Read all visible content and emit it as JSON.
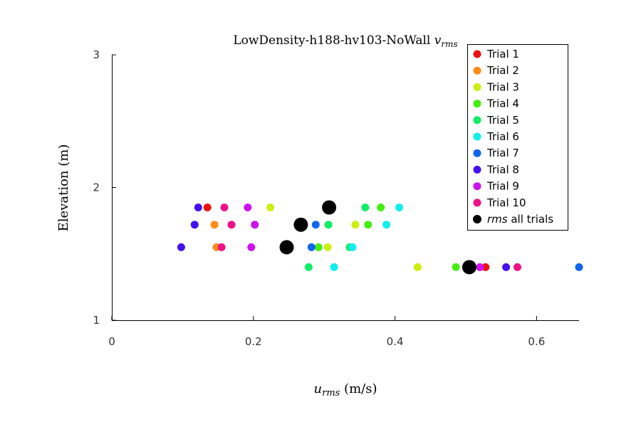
{
  "chart_data": {
    "type": "scatter",
    "title": "LowDensity-h188-hv103-NoWall v_rms",
    "title_main": "LowDensity-h188-hv103-NoWall ",
    "title_var": "v",
    "title_sub": "rms",
    "xlabel": "u_rms (m/s)",
    "xlabel_var": "u",
    "xlabel_sub": "rms",
    "xlabel_unit": " (m/s)",
    "ylabel": "Elevation (m)",
    "xlim": [
      0,
      0.66
    ],
    "ylim": [
      1,
      3
    ],
    "x_ticks": [
      "0",
      "0.2",
      "0.4",
      "0.6"
    ],
    "y_ticks": [
      "1",
      "2",
      "3"
    ],
    "grid": false,
    "legend_position": "top-right",
    "series": [
      {
        "name": "Trial 1",
        "color": "#ee1111",
        "points": [
          [
            0.135,
            1.85
          ],
          [
            0.528,
            1.4
          ]
        ]
      },
      {
        "name": "Trial 2",
        "color": "#ff8c1a",
        "points": [
          [
            0.145,
            1.72
          ],
          [
            0.148,
            1.55
          ]
        ]
      },
      {
        "name": "Trial 3",
        "color": "#ccee11",
        "points": [
          [
            0.224,
            1.85
          ],
          [
            0.344,
            1.72
          ],
          [
            0.305,
            1.55
          ],
          [
            0.432,
            1.4
          ]
        ]
      },
      {
        "name": "Trial 4",
        "color": "#44ee11",
        "points": [
          [
            0.38,
            1.85
          ],
          [
            0.362,
            1.72
          ],
          [
            0.292,
            1.55
          ],
          [
            0.486,
            1.4
          ]
        ]
      },
      {
        "name": "Trial 5",
        "color": "#11ee66",
        "points": [
          [
            0.358,
            1.85
          ],
          [
            0.306,
            1.72
          ],
          [
            0.336,
            1.55
          ],
          [
            0.278,
            1.4
          ]
        ]
      },
      {
        "name": "Trial 6",
        "color": "#11eeee",
        "points": [
          [
            0.406,
            1.85
          ],
          [
            0.388,
            1.72
          ],
          [
            0.34,
            1.55
          ],
          [
            0.314,
            1.4
          ]
        ]
      },
      {
        "name": "Trial 7",
        "color": "#1166ee",
        "points": [
          [
            0.288,
            1.72
          ],
          [
            0.282,
            1.55
          ],
          [
            0.66,
            1.4
          ]
        ]
      },
      {
        "name": "Trial 8",
        "color": "#4411ee",
        "points": [
          [
            0.122,
            1.85
          ],
          [
            0.117,
            1.72
          ],
          [
            0.098,
            1.55
          ],
          [
            0.557,
            1.4
          ]
        ]
      },
      {
        "name": "Trial 9",
        "color": "#cc11ee",
        "points": [
          [
            0.192,
            1.85
          ],
          [
            0.202,
            1.72
          ],
          [
            0.197,
            1.55
          ],
          [
            0.52,
            1.4
          ]
        ]
      },
      {
        "name": "Trial 10",
        "color": "#ee1188",
        "points": [
          [
            0.159,
            1.85
          ],
          [
            0.169,
            1.72
          ],
          [
            0.155,
            1.55
          ],
          [
            0.573,
            1.4
          ]
        ]
      },
      {
        "name": "rms all trials",
        "name_italic": "rms",
        "name_rest": " all trials",
        "color": "#000000",
        "large": true,
        "points": [
          [
            0.307,
            1.85
          ],
          [
            0.267,
            1.72
          ],
          [
            0.247,
            1.55
          ],
          [
            0.505,
            1.4
          ]
        ]
      }
    ]
  }
}
